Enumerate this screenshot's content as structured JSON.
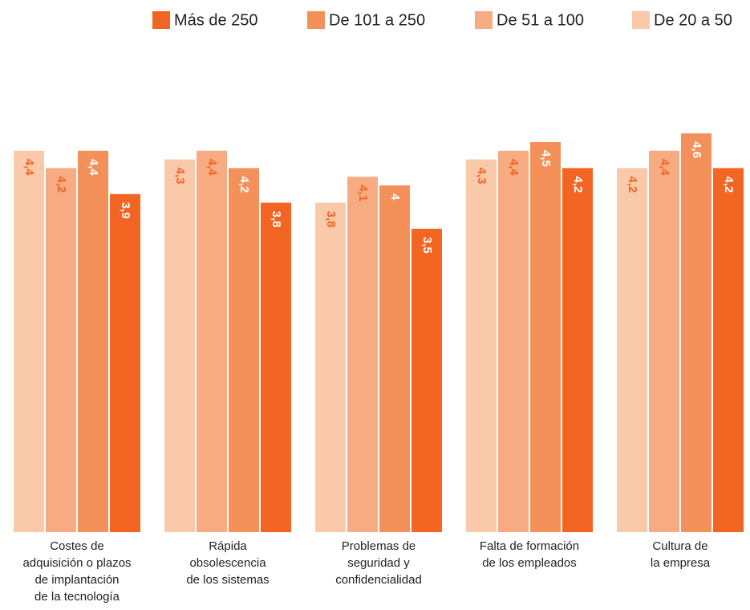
{
  "chart_data": {
    "type": "bar",
    "categories": [
      "Costes de\nadquisición o plazos\nde implantación\nde la tecnología",
      "Rápida\nobsolescencia\nde los sistemas",
      "Problemas de\nseguridad y\nconfidencialidad",
      "Falta de formación\nde los empleados",
      "Cultura de\nla empresa"
    ],
    "series": [
      {
        "name": "Más de 250",
        "color": "#f26522",
        "values": [
          3.9,
          3.8,
          3.5,
          4.2,
          4.2
        ],
        "value_labels": [
          "3,9",
          "3,8",
          "3,5",
          "4,2",
          "4,2"
        ]
      },
      {
        "name": "De 101 a 250",
        "color": "#f4915a",
        "values": [
          4.4,
          4.2,
          4,
          4.5,
          4.6
        ],
        "value_labels": [
          "4,4",
          "4,2",
          "4",
          "4,5",
          "4,6"
        ]
      },
      {
        "name": "De 51 a 100",
        "color": "#f7ab82",
        "values": [
          4.2,
          4.4,
          4.1,
          4.4,
          4.4
        ],
        "value_labels": [
          "4,2",
          "4,4",
          "4,1",
          "4,4",
          "4,4"
        ]
      },
      {
        "name": "De 20 a 50",
        "color": "#fac9aa",
        "values": [
          4.4,
          4.3,
          3.8,
          4.3,
          4.2
        ],
        "value_labels": [
          "4,4",
          "4,3",
          "3,8",
          "4,3",
          "4,2"
        ]
      }
    ],
    "ylim": [
      0,
      6.1
    ],
    "legend": "top"
  }
}
